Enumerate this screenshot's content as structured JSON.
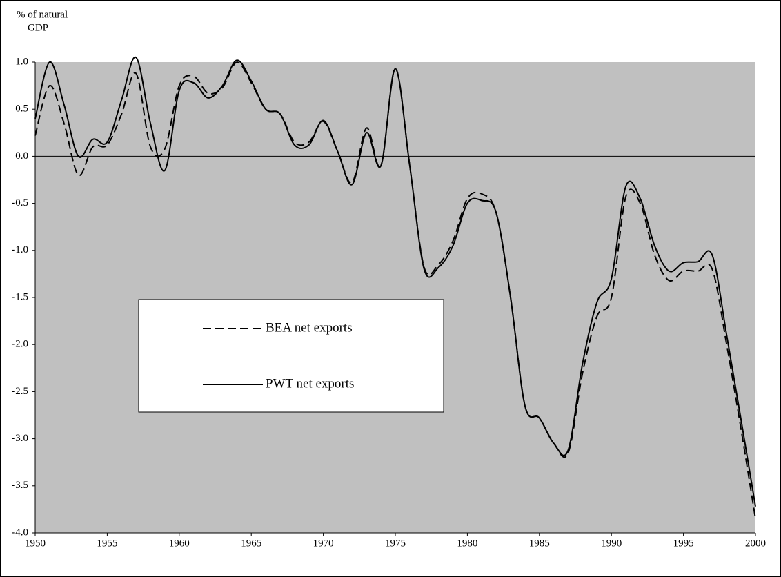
{
  "chart_data": {
    "type": "line",
    "ylabel": [
      "% of natural",
      "GDP"
    ],
    "x": [
      1950,
      1951,
      1952,
      1953,
      1954,
      1955,
      1956,
      1957,
      1958,
      1959,
      1960,
      1961,
      1962,
      1963,
      1964,
      1965,
      1966,
      1967,
      1968,
      1969,
      1970,
      1971,
      1972,
      1973,
      1974,
      1975,
      1976,
      1977,
      1978,
      1979,
      1980,
      1981,
      1982,
      1983,
      1984,
      1985,
      1986,
      1987,
      1988,
      1989,
      1990,
      1991,
      1992,
      1993,
      1994,
      1995,
      1996,
      1997,
      1998,
      1999,
      2000
    ],
    "series": [
      {
        "name": "BEA net exports",
        "color": "#000000",
        "dash": true,
        "values": [
          0.22,
          0.75,
          0.35,
          -0.2,
          0.1,
          0.12,
          0.45,
          0.88,
          0.1,
          0.08,
          0.75,
          0.85,
          0.67,
          0.73,
          1.0,
          0.78,
          0.5,
          0.45,
          0.15,
          0.15,
          0.37,
          0.05,
          -0.28,
          0.3,
          -0.1,
          0.93,
          -0.1,
          -1.18,
          -1.15,
          -0.9,
          -0.45,
          -0.4,
          -0.6,
          -1.5,
          -2.65,
          -2.78,
          -3.05,
          -3.15,
          -2.3,
          -1.7,
          -1.5,
          -0.43,
          -0.5,
          -1.05,
          -1.32,
          -1.22,
          -1.22,
          -1.2,
          -2.0,
          -2.9,
          -3.85
        ]
      },
      {
        "name": "PWT net exports",
        "color": "#000000",
        "dash": false,
        "values": [
          0.4,
          1.0,
          0.55,
          0.0,
          0.18,
          0.15,
          0.6,
          1.05,
          0.35,
          -0.15,
          0.7,
          0.78,
          0.62,
          0.75,
          1.02,
          0.8,
          0.5,
          0.45,
          0.12,
          0.12,
          0.38,
          0.05,
          -0.3,
          0.25,
          -0.1,
          0.93,
          -0.1,
          -1.2,
          -1.18,
          -0.95,
          -0.5,
          -0.47,
          -0.6,
          -1.5,
          -2.65,
          -2.78,
          -3.05,
          -3.12,
          -2.2,
          -1.55,
          -1.3,
          -0.32,
          -0.45,
          -0.95,
          -1.22,
          -1.13,
          -1.12,
          -1.05,
          -1.9,
          -2.8,
          -3.72
        ]
      }
    ],
    "xlim": [
      1950,
      2000
    ],
    "xticks": [
      1950,
      1955,
      1960,
      1965,
      1970,
      1975,
      1980,
      1985,
      1990,
      1995,
      2000
    ],
    "ylim": [
      -4,
      1
    ],
    "yticks": [
      {
        "value": -4,
        "label": "-4.0"
      },
      -3.5,
      {
        "value": -3,
        "label": "-3.0"
      },
      -2.5,
      {
        "value": -2,
        "label": "-2.0"
      },
      -1.5,
      {
        "value": -1,
        "label": "-1.0"
      },
      -0.5,
      {
        "value": 0,
        "label": "0.0"
      },
      0.5,
      {
        "value": 1,
        "label": "1.0"
      }
    ],
    "plot_background": "#c0c0c0",
    "legend": "center-left"
  }
}
